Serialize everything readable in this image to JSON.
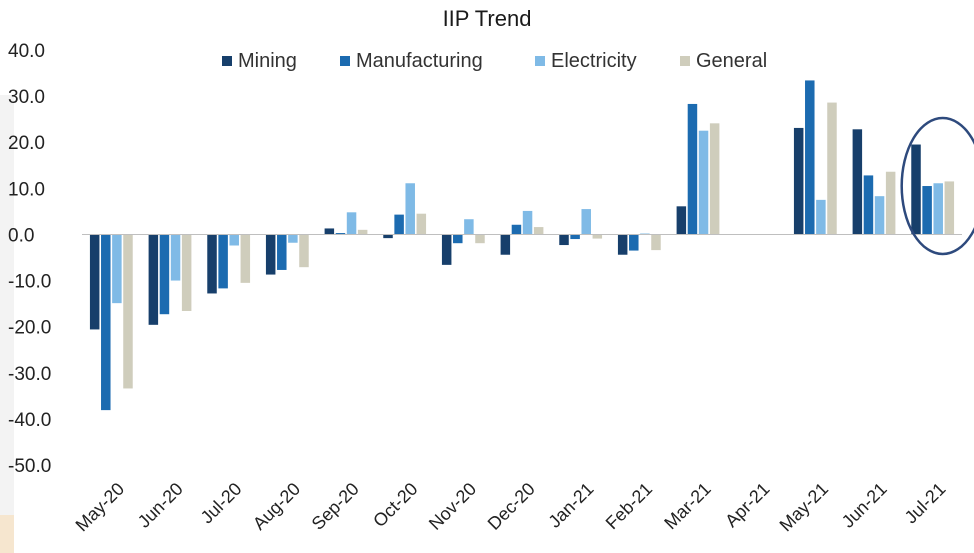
{
  "chart_data": {
    "type": "bar",
    "title": "IIP Trend",
    "xlabel": "",
    "ylabel": "",
    "ylim": [
      -50,
      40
    ],
    "yticks": [
      "40.0",
      "30.0",
      "20.0",
      "10.0",
      "0.0",
      "-10.0",
      "-20.0",
      "-30.0",
      "-40.0",
      "-50.0"
    ],
    "ytick_values": [
      40,
      30,
      20,
      10,
      0,
      -10,
      -20,
      -30,
      -40,
      -50
    ],
    "grid": false,
    "legend_position": "top",
    "categories": [
      "May-20",
      "Jun-20",
      "Jul-20",
      "Aug-20",
      "Sep-20",
      "Oct-20",
      "Nov-20",
      "Dec-20",
      "Jan-21",
      "Feb-21",
      "Mar-21",
      "Apr-21",
      "May-21",
      "Jun-21",
      "Jul-21"
    ],
    "series": [
      {
        "name": "Mining",
        "color": "#173f6b",
        "values": [
          -20.6,
          -19.6,
          -12.8,
          -8.7,
          1.3,
          -0.8,
          -6.6,
          -4.4,
          -2.3,
          -4.4,
          6.1,
          null,
          23.1,
          22.8,
          19.5
        ]
      },
      {
        "name": "Manufacturing",
        "color": "#1c6bb0",
        "values": [
          -38.1,
          -17.3,
          -11.7,
          -7.7,
          0.3,
          4.3,
          -1.9,
          2.1,
          -1.0,
          -3.5,
          28.3,
          null,
          33.4,
          12.8,
          10.5
        ]
      },
      {
        "name": "Electricity",
        "color": "#7fbae6",
        "values": [
          -14.9,
          -10.0,
          -2.4,
          -1.8,
          4.8,
          11.1,
          3.3,
          5.1,
          5.5,
          0.2,
          22.5,
          null,
          7.5,
          8.3,
          11.1
        ]
      },
      {
        "name": "General",
        "color": "#cfcdbc",
        "values": [
          -33.4,
          -16.6,
          -10.5,
          -7.1,
          1.0,
          4.5,
          -1.9,
          1.6,
          -0.9,
          -3.4,
          24.1,
          null,
          28.6,
          13.6,
          11.5
        ]
      }
    ],
    "annotation": {
      "type": "ellipse-highlight",
      "target_category": "Jul-21",
      "color": "#2e4a7d"
    }
  }
}
